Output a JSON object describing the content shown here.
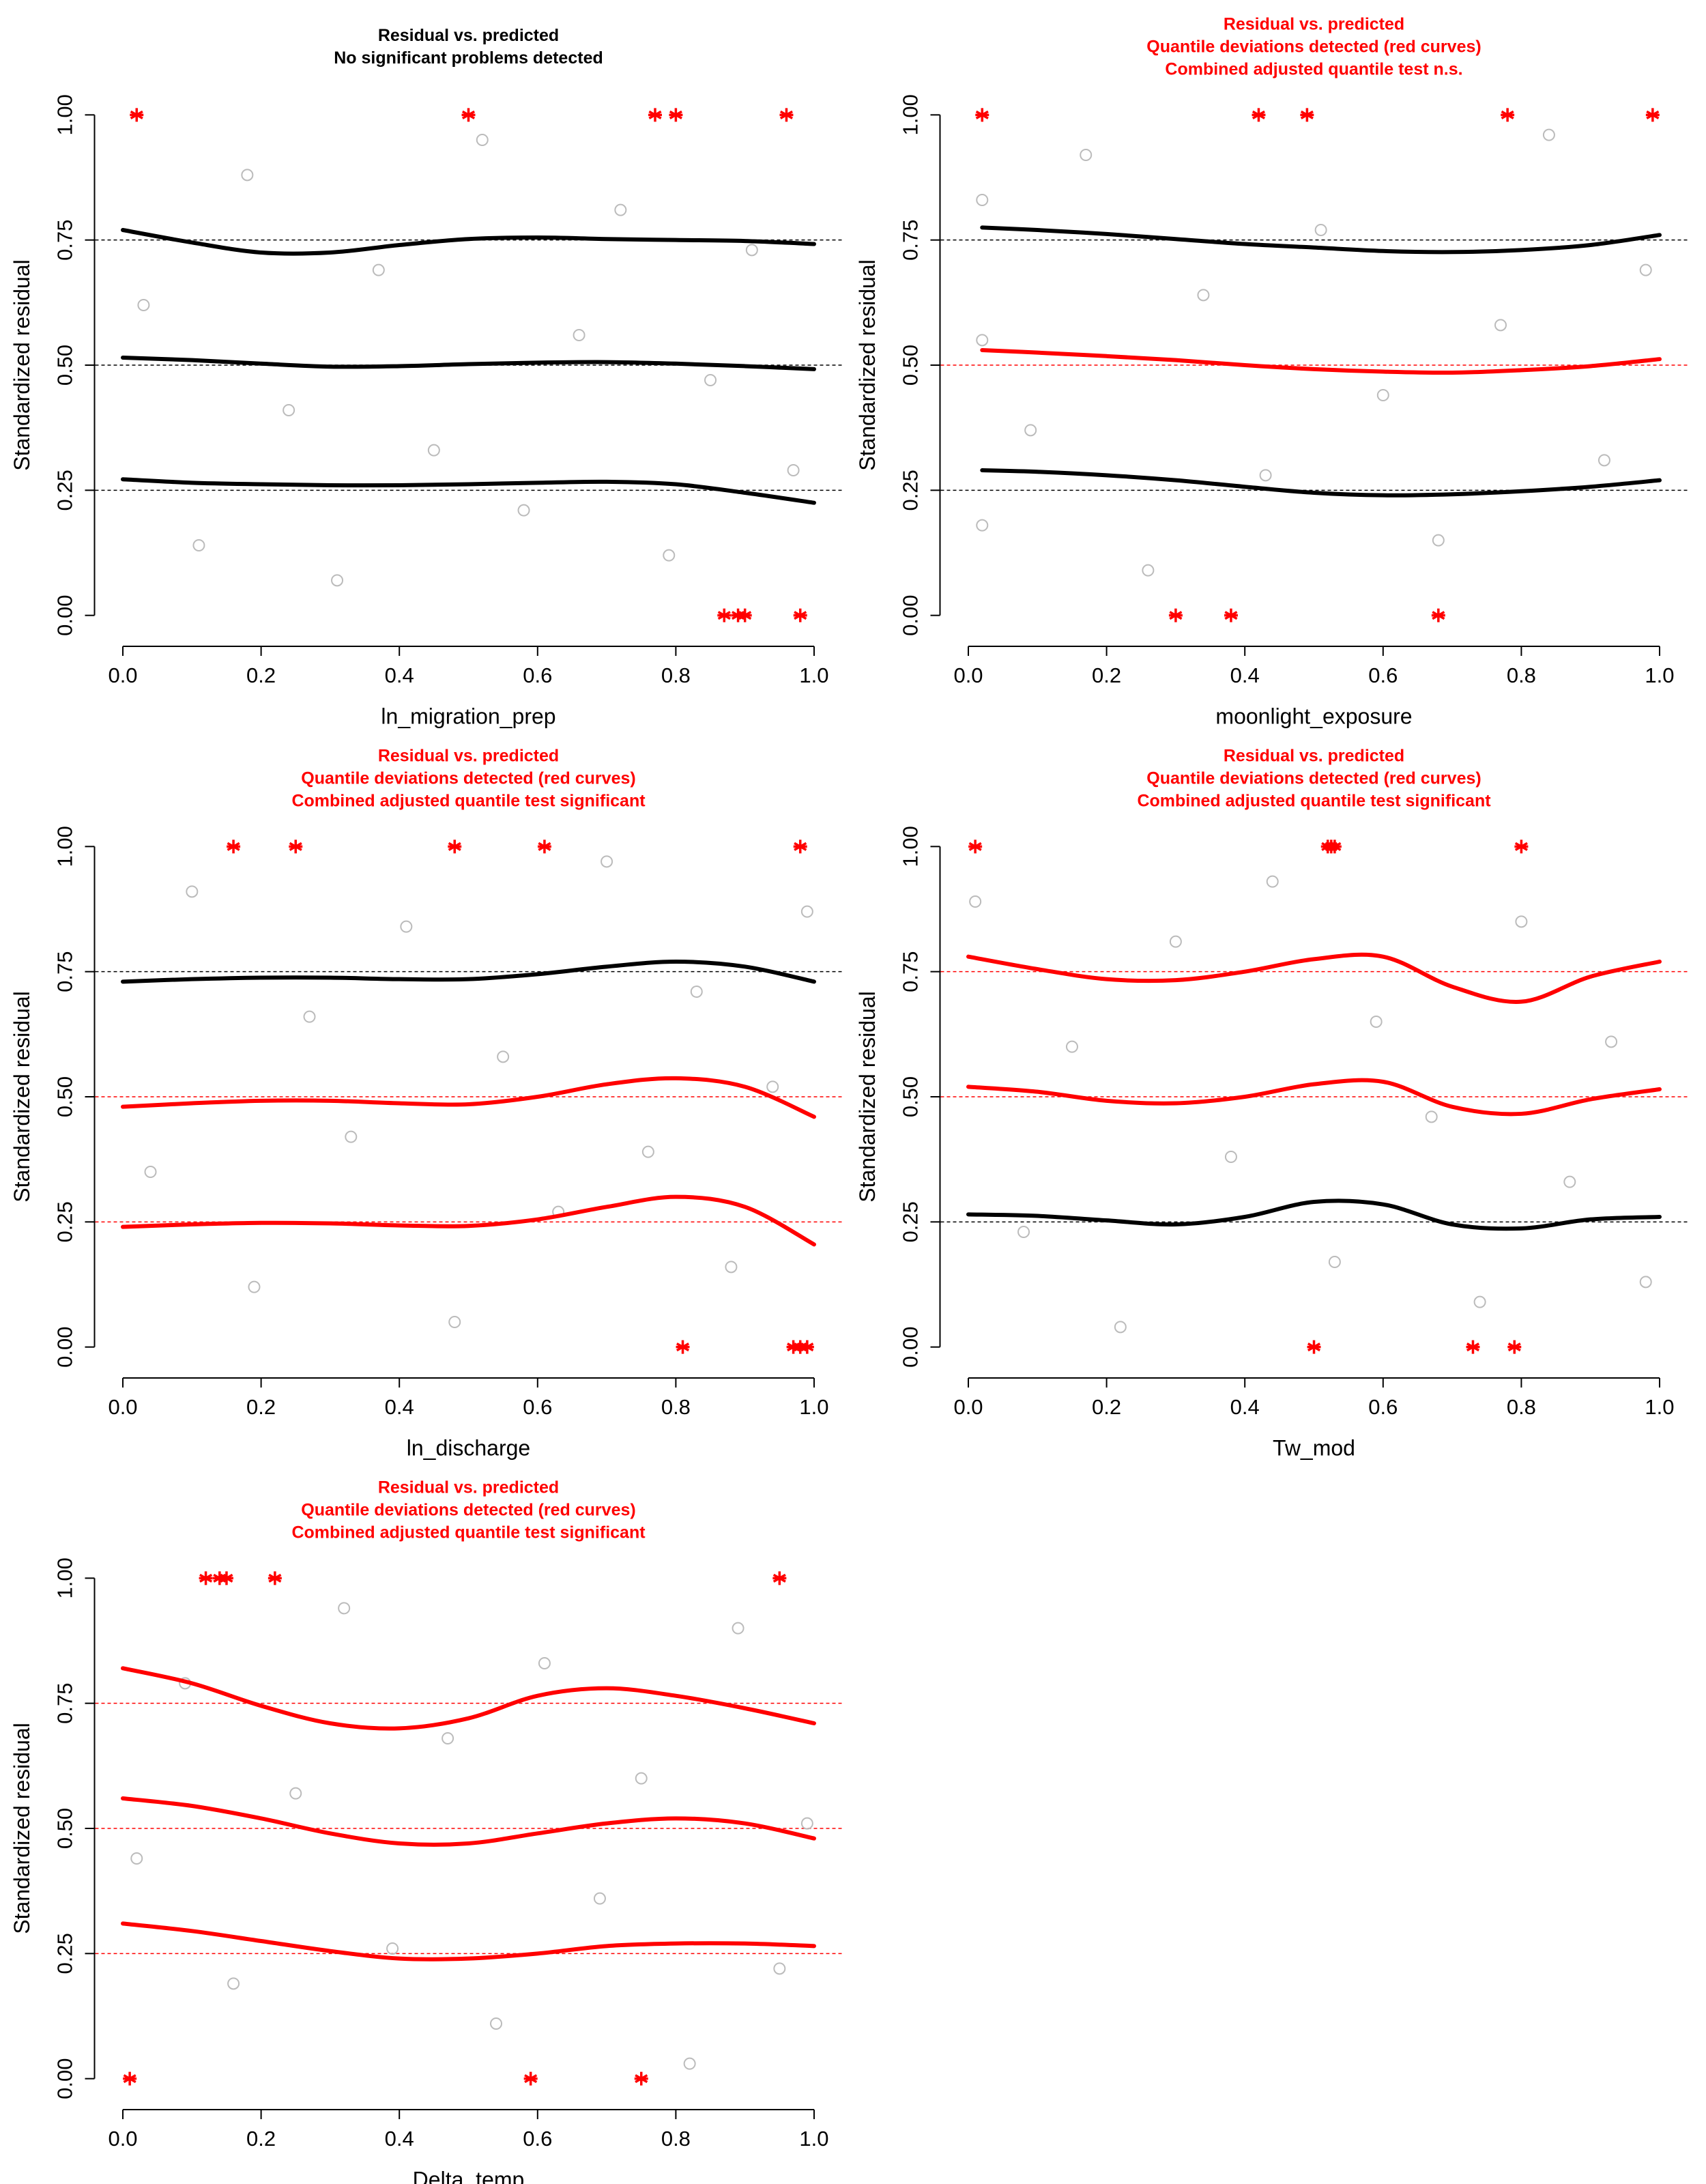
{
  "chart_data": [
    {
      "type": "scatter",
      "title": [
        "Residual vs. predicted",
        "No significant problems detected"
      ],
      "title_color": "#000000",
      "xlabel": "ln_migration_prep",
      "ylabel": "Standardized residual",
      "xlim": [
        -0.04,
        1.04
      ],
      "ylim": [
        -0.04,
        1.04
      ],
      "xticks": [
        {
          "value": 0,
          "label": "0.0"
        },
        0.2,
        0.4,
        0.6,
        0.8,
        {
          "value": 1,
          "label": "1.0"
        }
      ],
      "yticks": [
        {
          "value": 0,
          "label": "0.00"
        },
        {
          "value": 0.25,
          "label": "0.25"
        },
        {
          "value": 0.5,
          "label": "0.50"
        },
        {
          "value": 0.75,
          "label": "0.75"
        },
        {
          "value": 1,
          "label": "1.00"
        }
      ],
      "hlines": [
        {
          "value": 0.25,
          "color": "#000000"
        },
        {
          "value": 0.5,
          "color": "#000000"
        },
        {
          "value": 0.75,
          "color": "#000000"
        }
      ],
      "hline_style": "dashed",
      "series": [
        {
          "marker": "circle",
          "color": "#bbbbbb",
          "x": [
            0.03,
            0.11,
            0.18,
            0.24,
            0.31,
            0.37,
            0.45,
            0.52,
            0.58,
            0.66,
            0.72,
            0.79,
            0.85,
            0.91,
            0.97
          ],
          "values": [
            0.62,
            0.14,
            0.88,
            0.41,
            0.07,
            0.69,
            0.33,
            0.95,
            0.21,
            0.56,
            0.81,
            0.12,
            0.47,
            0.73,
            0.29
          ]
        },
        {
          "marker": "line",
          "color": "#000000",
          "x": [
            0,
            0.1,
            0.2,
            0.3,
            0.4,
            0.5,
            0.6,
            0.7,
            0.8,
            0.9,
            1
          ],
          "values": [
            0.272,
            0.265,
            0.262,
            0.26,
            0.26,
            0.262,
            0.265,
            0.267,
            0.262,
            0.245,
            0.225
          ]
        },
        {
          "marker": "line",
          "color": "#000000",
          "x": [
            0,
            0.1,
            0.2,
            0.3,
            0.4,
            0.5,
            0.6,
            0.7,
            0.8,
            0.9,
            1
          ],
          "values": [
            0.515,
            0.51,
            0.503,
            0.497,
            0.498,
            0.502,
            0.505,
            0.506,
            0.503,
            0.498,
            0.492
          ]
        },
        {
          "marker": "line",
          "color": "#000000",
          "x": [
            0,
            0.1,
            0.2,
            0.3,
            0.4,
            0.5,
            0.6,
            0.7,
            0.8,
            0.9,
            1
          ],
          "values": [
            0.77,
            0.745,
            0.725,
            0.725,
            0.74,
            0.752,
            0.755,
            0.752,
            0.75,
            0.748,
            0.742
          ]
        },
        {
          "marker": "asterisk",
          "color": "#ff0000",
          "x": [
            0.02,
            0.5,
            0.77,
            0.8,
            0.96,
            0.87,
            0.89,
            0.9,
            0.98
          ],
          "values": [
            1,
            1,
            1,
            1,
            1,
            0,
            0,
            0,
            0
          ]
        }
      ]
    },
    {
      "type": "scatter",
      "title": [
        "Residual vs. predicted",
        "Quantile deviations detected (red curves)",
        "Combined adjusted quantile test n.s."
      ],
      "title_color": "#ff0000",
      "xlabel": "moonlight_exposure",
      "ylabel": "Standardized residual",
      "xlim": [
        -0.04,
        1.04
      ],
      "ylim": [
        -0.04,
        1.04
      ],
      "xticks": [
        {
          "value": 0,
          "label": "0.0"
        },
        0.2,
        0.4,
        0.6,
        0.8,
        {
          "value": 1,
          "label": "1.0"
        }
      ],
      "yticks": [
        {
          "value": 0,
          "label": "0.00"
        },
        {
          "value": 0.25,
          "label": "0.25"
        },
        {
          "value": 0.5,
          "label": "0.50"
        },
        {
          "value": 0.75,
          "label": "0.75"
        },
        {
          "value": 1,
          "label": "1.00"
        }
      ],
      "hlines": [
        {
          "value": 0.25,
          "color": "#000000"
        },
        {
          "value": 0.5,
          "color": "#ff0000"
        },
        {
          "value": 0.75,
          "color": "#000000"
        }
      ],
      "hline_style": "dashed",
      "series": [
        {
          "marker": "circle",
          "color": "#bbbbbb",
          "x": [
            0.02,
            0.02,
            0.02,
            0.09,
            0.17,
            0.26,
            0.34,
            0.43,
            0.51,
            0.6,
            0.68,
            0.77,
            0.84,
            0.92,
            0.98
          ],
          "values": [
            0.18,
            0.55,
            0.83,
            0.37,
            0.92,
            0.09,
            0.64,
            0.28,
            0.77,
            0.44,
            0.15,
            0.58,
            0.96,
            0.31,
            0.69
          ]
        },
        {
          "marker": "line",
          "color": "#000000",
          "x": [
            0.02,
            0.1,
            0.2,
            0.3,
            0.4,
            0.5,
            0.6,
            0.7,
            0.8,
            0.9,
            1
          ],
          "values": [
            0.29,
            0.287,
            0.28,
            0.27,
            0.257,
            0.245,
            0.24,
            0.242,
            0.248,
            0.257,
            0.27
          ]
        },
        {
          "marker": "line",
          "color": "#ff0000",
          "x": [
            0.02,
            0.1,
            0.2,
            0.3,
            0.4,
            0.5,
            0.6,
            0.7,
            0.8,
            0.9,
            1
          ],
          "values": [
            0.53,
            0.525,
            0.518,
            0.51,
            0.5,
            0.492,
            0.487,
            0.485,
            0.49,
            0.498,
            0.512
          ]
        },
        {
          "marker": "line",
          "color": "#000000",
          "x": [
            0.02,
            0.1,
            0.2,
            0.3,
            0.4,
            0.5,
            0.6,
            0.7,
            0.8,
            0.9,
            1
          ],
          "values": [
            0.775,
            0.77,
            0.762,
            0.752,
            0.742,
            0.735,
            0.728,
            0.726,
            0.73,
            0.74,
            0.76
          ]
        },
        {
          "marker": "asterisk",
          "color": "#ff0000",
          "x": [
            0.02,
            0.42,
            0.49,
            0.78,
            0.99,
            0.3,
            0.38,
            0.68
          ],
          "values": [
            1,
            1,
            1,
            1,
            1,
            0,
            0,
            0
          ]
        }
      ]
    },
    {
      "type": "scatter",
      "title": [
        "Residual vs. predicted",
        "Quantile deviations detected (red curves)",
        "Combined adjusted quantile test significant"
      ],
      "title_color": "#ff0000",
      "xlabel": "ln_discharge",
      "ylabel": "Standardized residual",
      "xlim": [
        -0.04,
        1.04
      ],
      "ylim": [
        -0.04,
        1.04
      ],
      "xticks": [
        {
          "value": 0,
          "label": "0.0"
        },
        0.2,
        0.4,
        0.6,
        0.8,
        {
          "value": 1,
          "label": "1.0"
        }
      ],
      "yticks": [
        {
          "value": 0,
          "label": "0.00"
        },
        {
          "value": 0.25,
          "label": "0.25"
        },
        {
          "value": 0.5,
          "label": "0.50"
        },
        {
          "value": 0.75,
          "label": "0.75"
        },
        {
          "value": 1,
          "label": "1.00"
        }
      ],
      "hlines": [
        {
          "value": 0.25,
          "color": "#ff0000"
        },
        {
          "value": 0.5,
          "color": "#ff0000"
        },
        {
          "value": 0.75,
          "color": "#000000"
        }
      ],
      "hline_style": "dashed",
      "series": [
        {
          "marker": "circle",
          "color": "#bbbbbb",
          "x": [
            0.04,
            0.1,
            0.19,
            0.27,
            0.33,
            0.41,
            0.48,
            0.55,
            0.63,
            0.7,
            0.76,
            0.83,
            0.88,
            0.94,
            0.99
          ],
          "values": [
            0.35,
            0.91,
            0.12,
            0.66,
            0.42,
            0.84,
            0.05,
            0.58,
            0.27,
            0.97,
            0.39,
            0.71,
            0.16,
            0.52,
            0.87
          ]
        },
        {
          "marker": "line",
          "color": "#ff0000",
          "x": [
            0,
            0.1,
            0.2,
            0.3,
            0.4,
            0.5,
            0.6,
            0.7,
            0.8,
            0.9,
            1
          ],
          "values": [
            0.24,
            0.245,
            0.248,
            0.247,
            0.243,
            0.242,
            0.255,
            0.28,
            0.3,
            0.28,
            0.205
          ]
        },
        {
          "marker": "line",
          "color": "#ff0000",
          "x": [
            0,
            0.1,
            0.2,
            0.3,
            0.4,
            0.5,
            0.6,
            0.7,
            0.8,
            0.9,
            1
          ],
          "values": [
            0.48,
            0.487,
            0.492,
            0.492,
            0.487,
            0.485,
            0.5,
            0.525,
            0.537,
            0.52,
            0.46
          ]
        },
        {
          "marker": "line",
          "color": "#000000",
          "x": [
            0,
            0.1,
            0.2,
            0.3,
            0.4,
            0.5,
            0.6,
            0.7,
            0.8,
            0.9,
            1
          ],
          "values": [
            0.73,
            0.735,
            0.738,
            0.738,
            0.735,
            0.735,
            0.745,
            0.76,
            0.77,
            0.76,
            0.73
          ]
        },
        {
          "marker": "asterisk",
          "color": "#ff0000",
          "x": [
            0.16,
            0.25,
            0.48,
            0.61,
            0.98,
            0.81,
            0.97,
            0.98,
            0.99
          ],
          "values": [
            1,
            1,
            1,
            1,
            1,
            0,
            0,
            0,
            0
          ]
        }
      ]
    },
    {
      "type": "scatter",
      "title": [
        "Residual vs. predicted",
        "Quantile deviations detected (red curves)",
        "Combined adjusted quantile test significant"
      ],
      "title_color": "#ff0000",
      "xlabel": "Tw_mod",
      "ylabel": "Standardized residual",
      "xlim": [
        -0.04,
        1.04
      ],
      "ylim": [
        -0.04,
        1.04
      ],
      "xticks": [
        {
          "value": 0,
          "label": "0.0"
        },
        0.2,
        0.4,
        0.6,
        0.8,
        {
          "value": 1,
          "label": "1.0"
        }
      ],
      "yticks": [
        {
          "value": 0,
          "label": "0.00"
        },
        {
          "value": 0.25,
          "label": "0.25"
        },
        {
          "value": 0.5,
          "label": "0.50"
        },
        {
          "value": 0.75,
          "label": "0.75"
        },
        {
          "value": 1,
          "label": "1.00"
        }
      ],
      "hlines": [
        {
          "value": 0.25,
          "color": "#000000"
        },
        {
          "value": 0.5,
          "color": "#ff0000"
        },
        {
          "value": 0.75,
          "color": "#ff0000"
        }
      ],
      "hline_style": "dashed",
      "series": [
        {
          "marker": "circle",
          "color": "#bbbbbb",
          "x": [
            0.01,
            0.08,
            0.15,
            0.22,
            0.3,
            0.38,
            0.44,
            0.53,
            0.59,
            0.67,
            0.74,
            0.8,
            0.87,
            0.93,
            0.98
          ],
          "values": [
            0.89,
            0.23,
            0.6,
            0.04,
            0.81,
            0.38,
            0.93,
            0.17,
            0.65,
            0.46,
            0.09,
            0.85,
            0.33,
            0.61,
            0.13
          ]
        },
        {
          "marker": "line",
          "color": "#000000",
          "x": [
            0,
            0.1,
            0.2,
            0.3,
            0.4,
            0.5,
            0.6,
            0.7,
            0.8,
            0.9,
            1
          ],
          "values": [
            0.265,
            0.262,
            0.253,
            0.245,
            0.26,
            0.29,
            0.285,
            0.245,
            0.237,
            0.255,
            0.26
          ]
        },
        {
          "marker": "line",
          "color": "#ff0000",
          "x": [
            0,
            0.1,
            0.2,
            0.3,
            0.4,
            0.5,
            0.6,
            0.7,
            0.8,
            0.9,
            1
          ],
          "values": [
            0.52,
            0.51,
            0.492,
            0.487,
            0.5,
            0.525,
            0.53,
            0.48,
            0.466,
            0.495,
            0.515
          ]
        },
        {
          "marker": "line",
          "color": "#ff0000",
          "x": [
            0,
            0.1,
            0.2,
            0.3,
            0.4,
            0.5,
            0.6,
            0.7,
            0.8,
            0.9,
            1
          ],
          "values": [
            0.78,
            0.755,
            0.735,
            0.733,
            0.75,
            0.775,
            0.78,
            0.72,
            0.69,
            0.74,
            0.77
          ]
        },
        {
          "marker": "asterisk",
          "color": "#ff0000",
          "x": [
            0.01,
            0.52,
            0.525,
            0.53,
            0.8,
            0.5,
            0.73,
            0.79
          ],
          "values": [
            1,
            1,
            1,
            1,
            1,
            0,
            0,
            0
          ]
        }
      ]
    },
    {
      "type": "scatter",
      "title": [
        "Residual vs. predicted",
        "Quantile deviations detected (red curves)",
        "Combined adjusted quantile test significant"
      ],
      "title_color": "#ff0000",
      "xlabel": "Delta_temp",
      "ylabel": "Standardized residual",
      "xlim": [
        -0.04,
        1.04
      ],
      "ylim": [
        -0.04,
        1.04
      ],
      "xticks": [
        {
          "value": 0,
          "label": "0.0"
        },
        0.2,
        0.4,
        0.6,
        0.8,
        {
          "value": 1,
          "label": "1.0"
        }
      ],
      "yticks": [
        {
          "value": 0,
          "label": "0.00"
        },
        {
          "value": 0.25,
          "label": "0.25"
        },
        {
          "value": 0.5,
          "label": "0.50"
        },
        {
          "value": 0.75,
          "label": "0.75"
        },
        {
          "value": 1,
          "label": "1.00"
        }
      ],
      "hlines": [
        {
          "value": 0.25,
          "color": "#ff0000"
        },
        {
          "value": 0.5,
          "color": "#ff0000"
        },
        {
          "value": 0.75,
          "color": "#ff0000"
        }
      ],
      "hline_style": "dashed",
      "series": [
        {
          "marker": "circle",
          "color": "#bbbbbb",
          "x": [
            0.02,
            0.09,
            0.16,
            0.25,
            0.32,
            0.39,
            0.47,
            0.54,
            0.61,
            0.69,
            0.75,
            0.82,
            0.89,
            0.95,
            0.99
          ],
          "values": [
            0.44,
            0.79,
            0.19,
            0.57,
            0.94,
            0.26,
            0.68,
            0.11,
            0.83,
            0.36,
            0.6,
            0.03,
            0.9,
            0.22,
            0.51
          ]
        },
        {
          "marker": "line",
          "color": "#ff0000",
          "x": [
            0,
            0.1,
            0.2,
            0.3,
            0.4,
            0.5,
            0.6,
            0.7,
            0.8,
            0.9,
            1
          ],
          "values": [
            0.31,
            0.295,
            0.275,
            0.255,
            0.24,
            0.24,
            0.25,
            0.265,
            0.27,
            0.27,
            0.265
          ]
        },
        {
          "marker": "line",
          "color": "#ff0000",
          "x": [
            0,
            0.1,
            0.2,
            0.3,
            0.4,
            0.5,
            0.6,
            0.7,
            0.8,
            0.9,
            1
          ],
          "values": [
            0.56,
            0.545,
            0.52,
            0.49,
            0.47,
            0.47,
            0.49,
            0.51,
            0.52,
            0.51,
            0.48
          ]
        },
        {
          "marker": "line",
          "color": "#ff0000",
          "x": [
            0,
            0.1,
            0.2,
            0.3,
            0.4,
            0.5,
            0.6,
            0.7,
            0.8,
            0.9,
            1
          ],
          "values": [
            0.82,
            0.79,
            0.745,
            0.71,
            0.7,
            0.72,
            0.765,
            0.78,
            0.765,
            0.74,
            0.71
          ]
        },
        {
          "marker": "asterisk",
          "color": "#ff0000",
          "x": [
            0.12,
            0.14,
            0.15,
            0.22,
            0.95,
            0.01,
            0.59,
            0.75
          ],
          "values": [
            1,
            1,
            1,
            1,
            1,
            0,
            0,
            0
          ]
        }
      ]
    }
  ]
}
